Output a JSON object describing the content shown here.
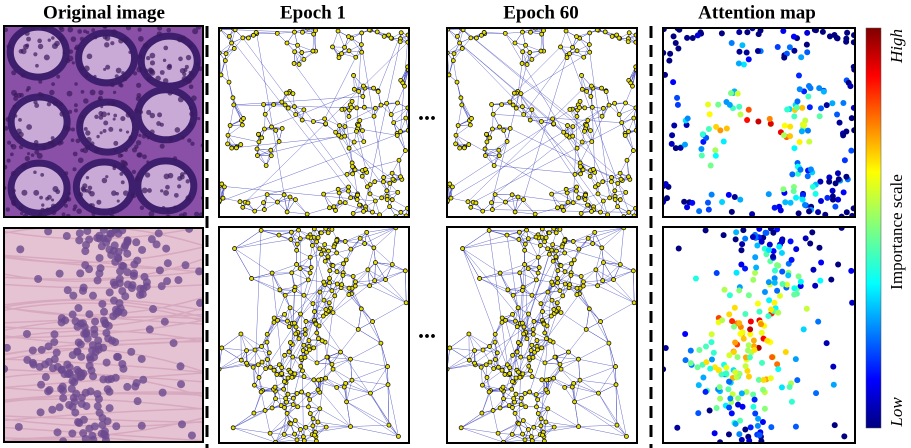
{
  "titles": {
    "original": "Original image",
    "epoch_first": "Epoch 1",
    "epoch_last": "Epoch 60",
    "attention": "Attention map"
  },
  "ellipsis": "...",
  "colorbar": {
    "high": "High",
    "low": "Low",
    "label": "Importance scale"
  }
}
